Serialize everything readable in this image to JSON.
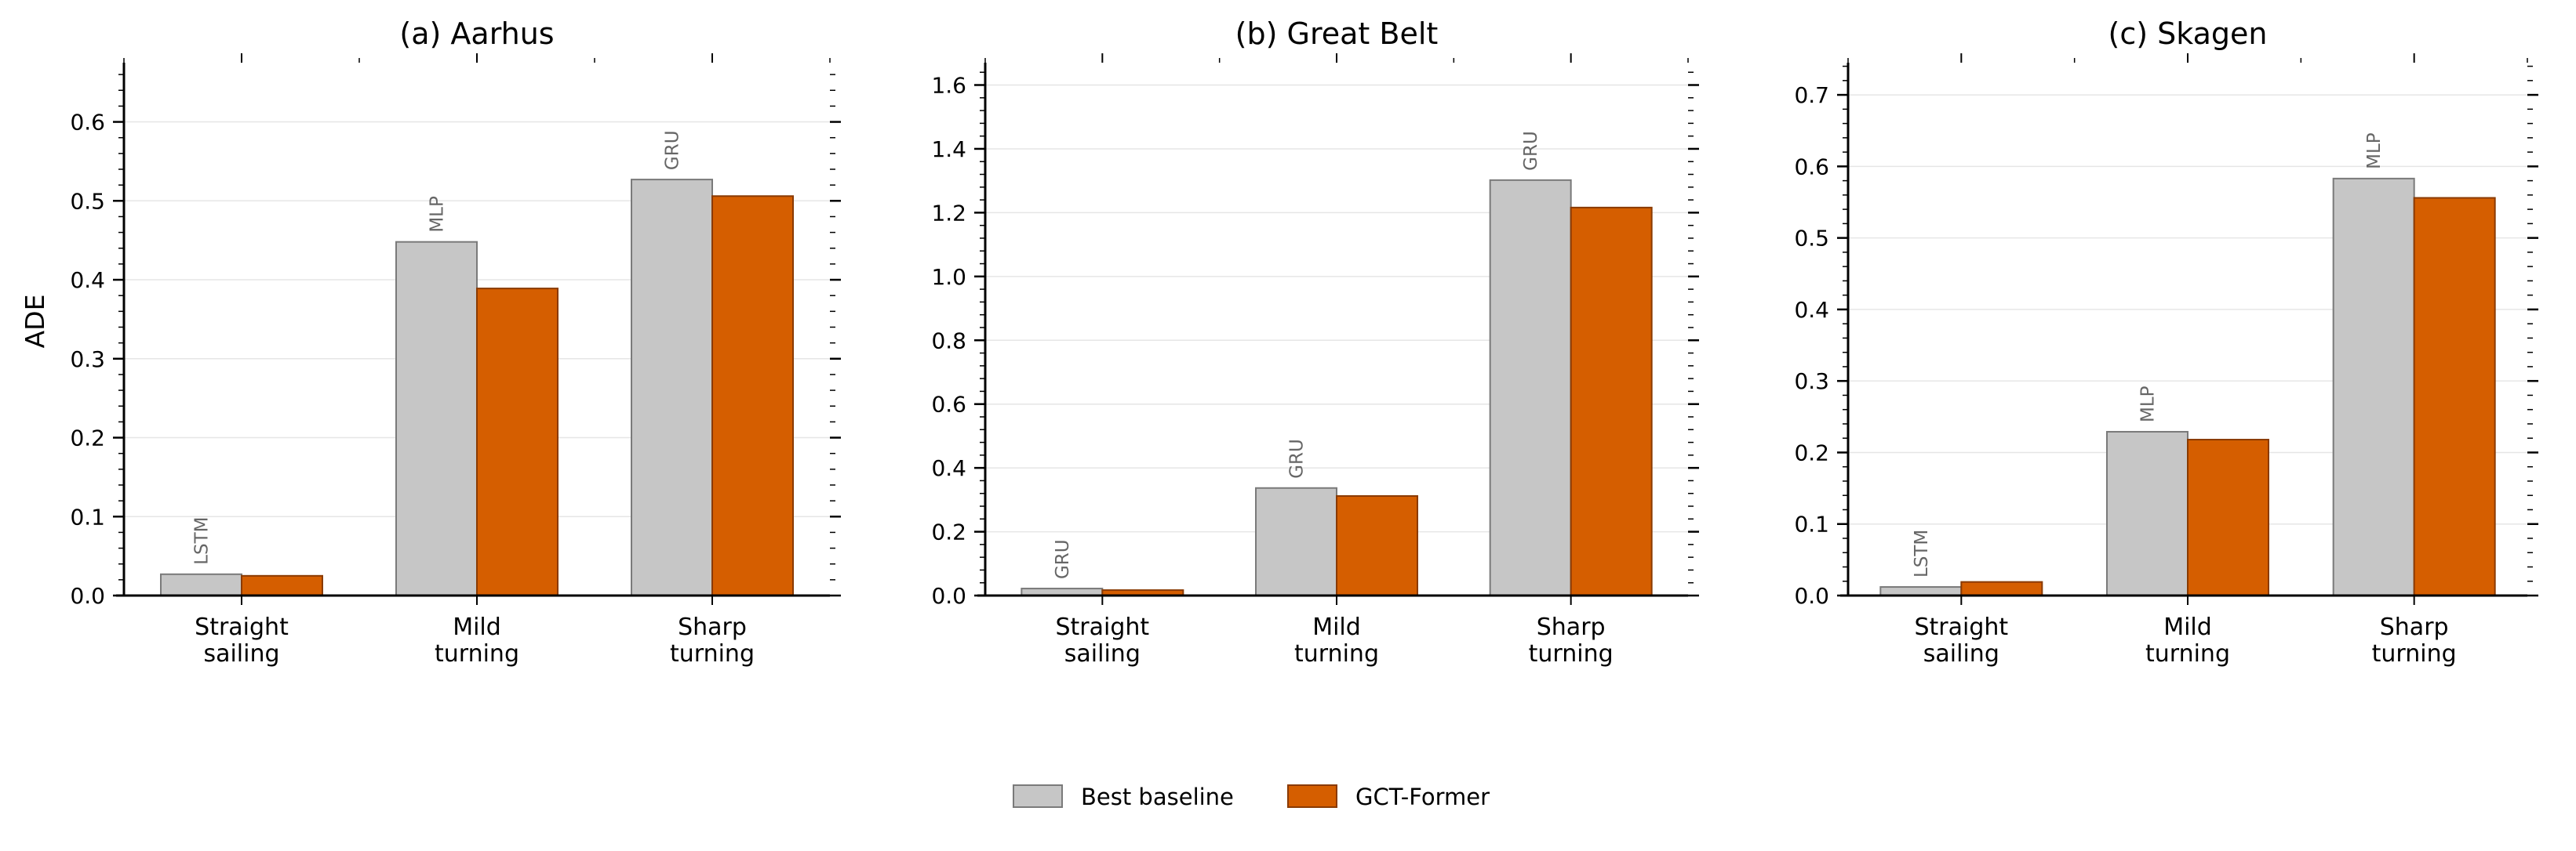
{
  "colors": {
    "baseline": "#c6c6c6",
    "gct": "#d55e00",
    "baseline_edge": "#7a7a7a",
    "gct_edge": "#8a3a00",
    "grid": "#e6e6e6",
    "annot": "#666666"
  },
  "legend": {
    "placement": "bottom-center",
    "items": [
      {
        "label": "Best baseline",
        "color": "#c6c6c6"
      },
      {
        "label": "GCT-Former",
        "color": "#d55e00"
      }
    ]
  },
  "chart_data": [
    {
      "type": "bar",
      "title": "(a) Aarhus",
      "ylabel": "ADE",
      "ylim": [
        0,
        0.675
      ],
      "yticks": [
        0.0,
        0.1,
        0.2,
        0.3,
        0.4,
        0.5,
        0.6
      ],
      "ytick_labels": [
        "0.0",
        "0.1",
        "0.2",
        "0.3",
        "0.4",
        "0.5",
        "0.6"
      ],
      "grid": true,
      "categories": [
        [
          "Straight",
          "sailing"
        ],
        [
          "Mild",
          "turning"
        ],
        [
          "Sharp",
          "turning"
        ]
      ],
      "series": [
        {
          "name": "Best baseline",
          "values": [
            0.027,
            0.448,
            0.527
          ],
          "annotations": [
            "LSTM",
            "MLP",
            "GRU"
          ]
        },
        {
          "name": "GCT-Former",
          "values": [
            0.025,
            0.389,
            0.506
          ]
        }
      ]
    },
    {
      "type": "bar",
      "title": "(b) Great Belt",
      "ylabel": "",
      "ylim": [
        0,
        1.67
      ],
      "yticks": [
        0.0,
        0.2,
        0.4,
        0.6,
        0.8,
        1.0,
        1.2,
        1.4,
        1.6
      ],
      "ytick_labels": [
        "0.0",
        "0.2",
        "0.4",
        "0.6",
        "0.8",
        "1.0",
        "1.2",
        "1.4",
        "1.6"
      ],
      "grid": true,
      "categories": [
        [
          "Straight",
          "sailing"
        ],
        [
          "Mild",
          "turning"
        ],
        [
          "Sharp",
          "turning"
        ]
      ],
      "series": [
        {
          "name": "Best baseline",
          "values": [
            0.022,
            0.337,
            1.302
          ],
          "annotations": [
            "GRU",
            "GRU",
            "GRU"
          ]
        },
        {
          "name": "GCT-Former",
          "values": [
            0.017,
            0.312,
            1.216
          ]
        }
      ]
    },
    {
      "type": "bar",
      "title": "(c) Skagen",
      "ylabel": "",
      "ylim": [
        0,
        0.745
      ],
      "yticks": [
        0.0,
        0.1,
        0.2,
        0.3,
        0.4,
        0.5,
        0.6,
        0.7
      ],
      "ytick_labels": [
        "0.0",
        "0.1",
        "0.2",
        "0.3",
        "0.4",
        "0.5",
        "0.6",
        "0.7"
      ],
      "grid": true,
      "categories": [
        [
          "Straight",
          "sailing"
        ],
        [
          "Mild",
          "turning"
        ],
        [
          "Sharp",
          "turning"
        ]
      ],
      "series": [
        {
          "name": "Best baseline",
          "values": [
            0.012,
            0.229,
            0.583
          ],
          "annotations": [
            "LSTM",
            "MLP",
            "MLP"
          ]
        },
        {
          "name": "GCT-Former",
          "values": [
            0.019,
            0.218,
            0.556
          ]
        }
      ]
    }
  ]
}
